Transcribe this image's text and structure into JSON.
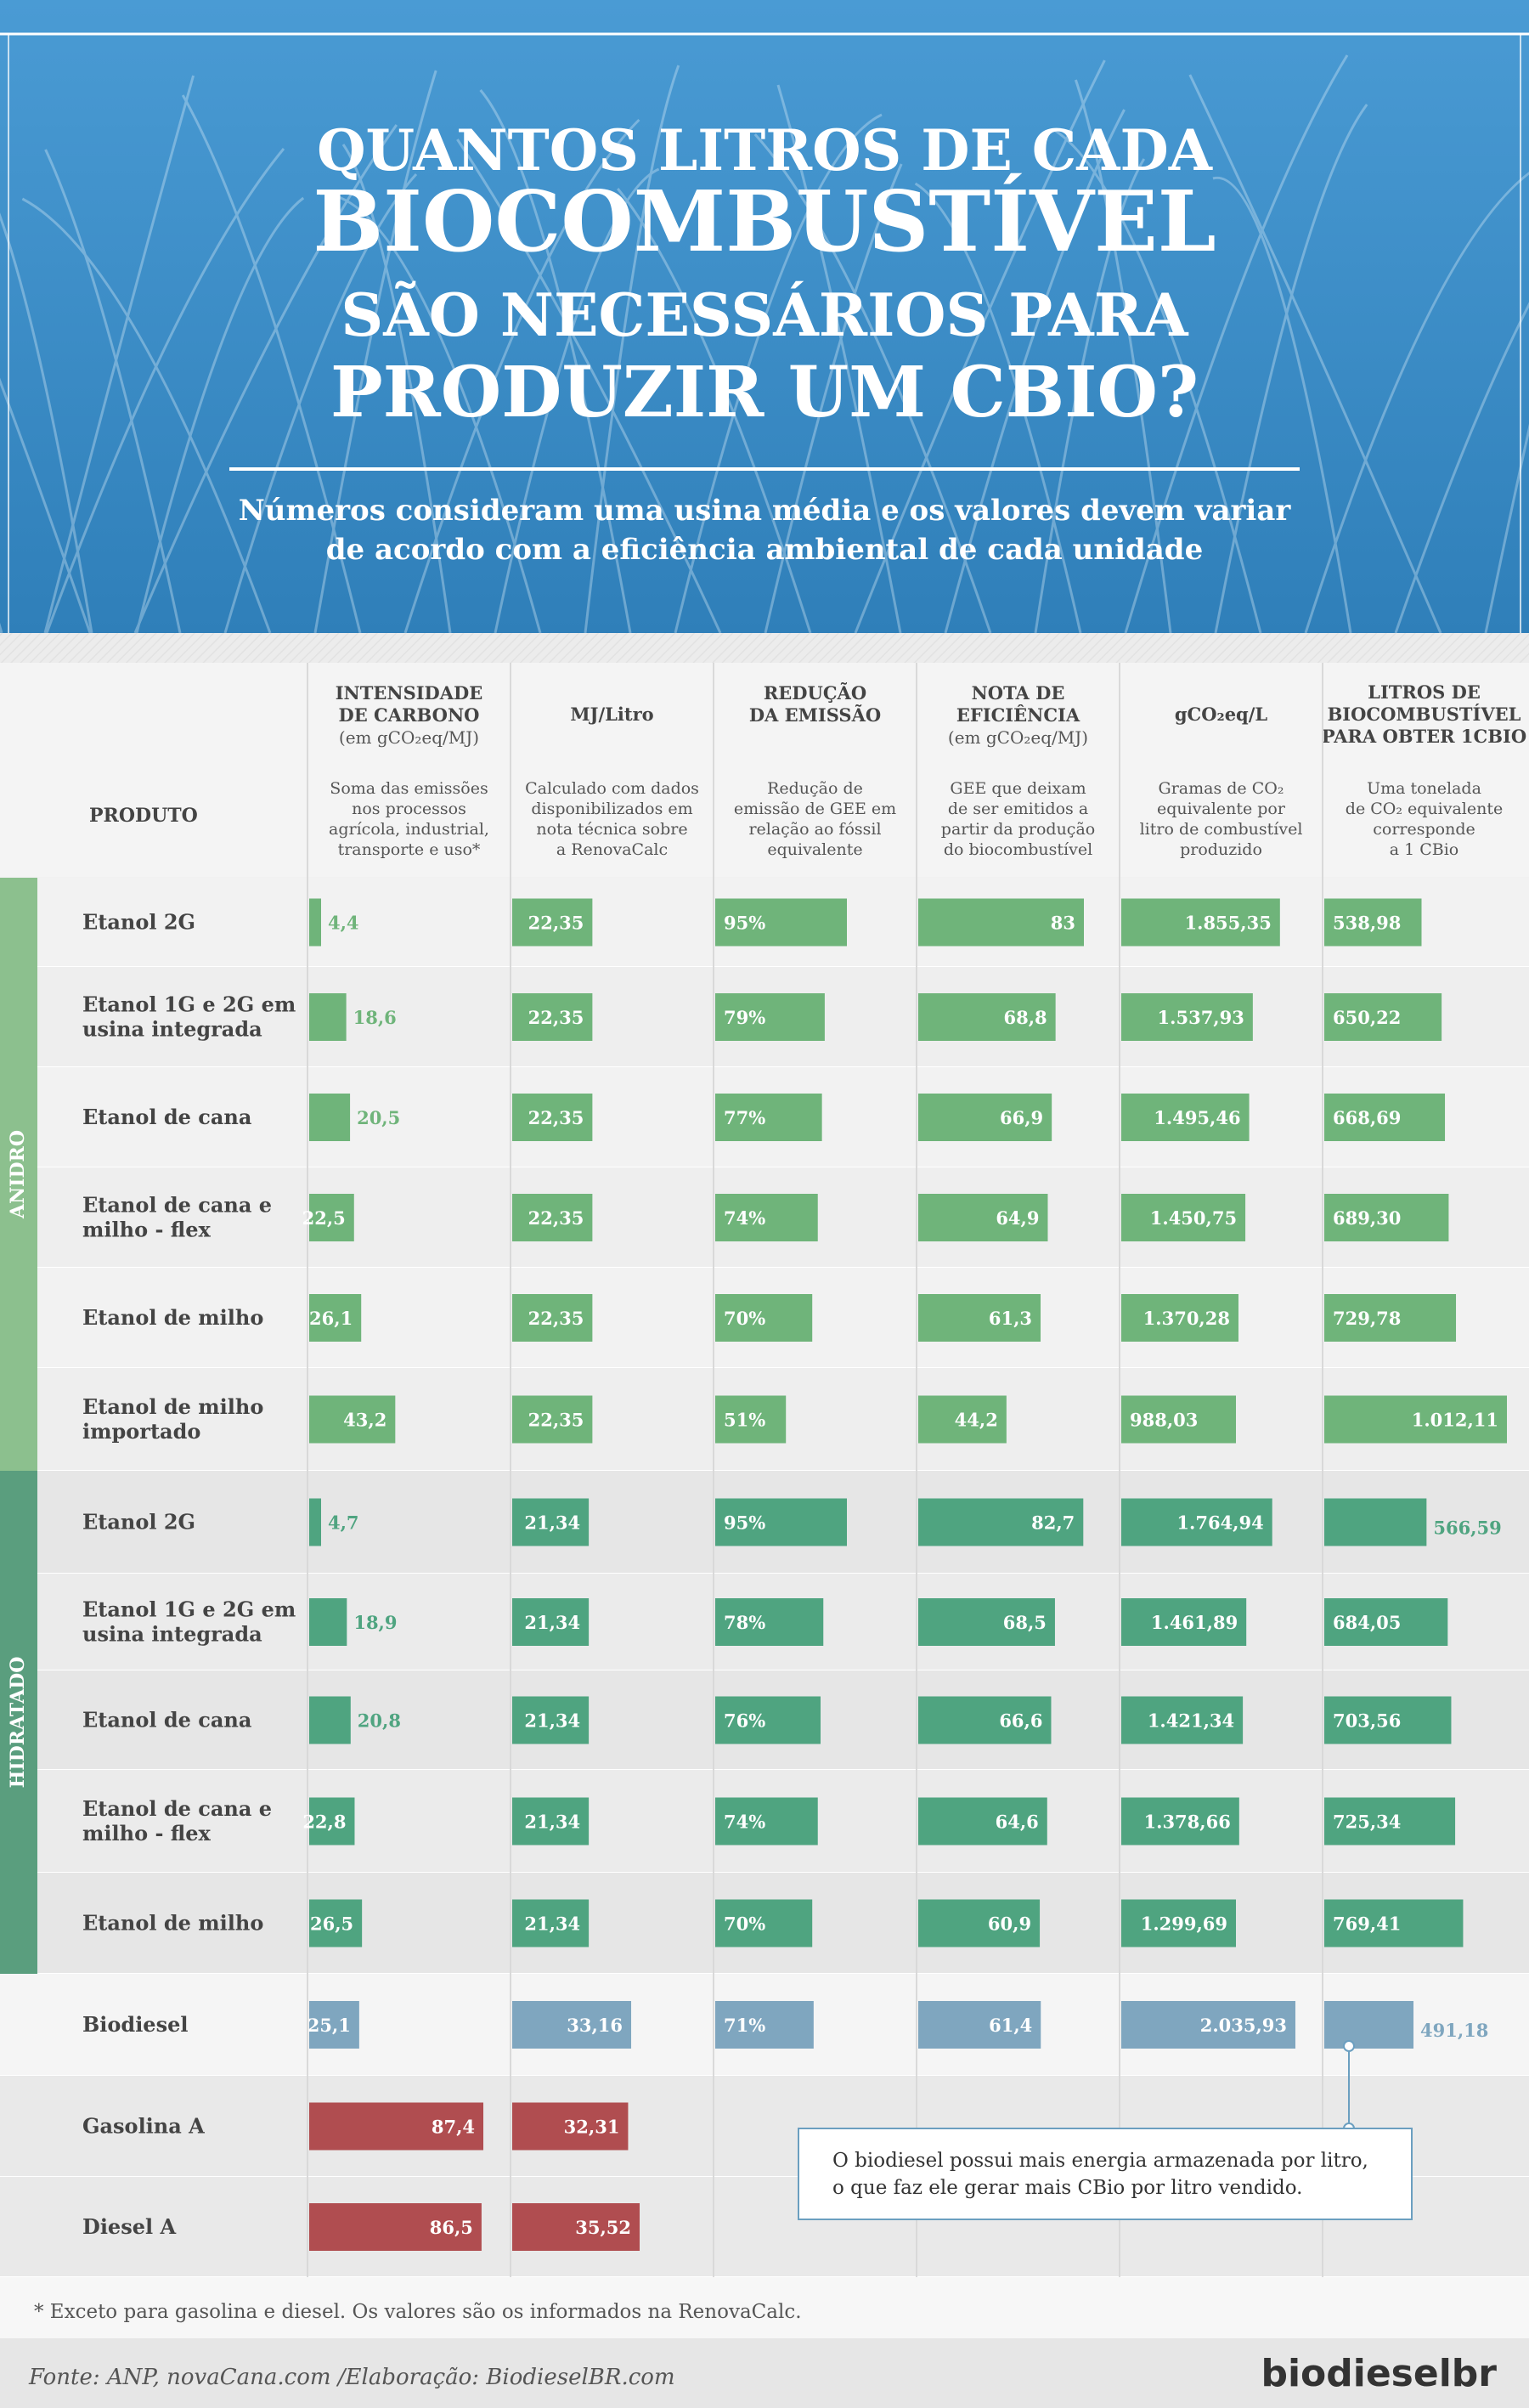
{
  "header": {
    "title_lines": [
      "QUANTOS LITROS DE CADA",
      "BIOCOMBUSTÍVEL",
      "SÃO NECESSÁRIOS PARA",
      "PRODUZIR UM CBIO?"
    ],
    "subtitle_lines": [
      "Números consideram uma usina média e os valores devem variar",
      "de acordo com a eficiência ambiental de cada unidade"
    ]
  },
  "table": {
    "product_header": "PRODUTO",
    "columns": [
      {
        "title": [
          "INTENSIDADE",
          "DE CARBONO"
        ],
        "unit": "(em gCO₂eq/MJ)",
        "desc": [
          "Soma das emissões",
          "nos processos",
          "agrícola, industrial,",
          "transporte e uso*"
        ]
      },
      {
        "title": [
          "MJ/Litro"
        ],
        "unit": "",
        "desc": [
          "Calculado com dados",
          "disponibilizados em",
          "nota técnica sobre",
          "a RenovaCalc"
        ]
      },
      {
        "title": [
          "REDUÇÃO",
          "DA EMISSÃO"
        ],
        "unit": "",
        "desc": [
          "Redução de",
          "emissão de GEE em",
          "relação ao fóssil",
          "equivalente"
        ]
      },
      {
        "title": [
          "NOTA DE",
          "EFICIÊNCIA"
        ],
        "unit": "(em gCO₂eq/MJ)",
        "desc": [
          "GEE que deixam",
          "de ser emitidos a",
          "partir da produção",
          "do biocombustível"
        ]
      },
      {
        "title": [
          "gCO₂eq/L"
        ],
        "unit": "",
        "desc": [
          "Gramas de CO₂",
          "equivalente por",
          "litro de combustível",
          "produzido"
        ]
      },
      {
        "title": [
          "LITROS DE",
          "BIOCOMBUSTÍVEL",
          "PARA OBTER 1CBIO"
        ],
        "unit": "",
        "desc": [
          "Uma tonelada",
          "de CO₂ equivalente",
          "corresponde",
          "a 1 CBio"
        ]
      }
    ],
    "groups": [
      {
        "label": "ANIDRO",
        "color": "#8cc08e"
      },
      {
        "label": "HIDRATADO",
        "color": "#5a9e7e"
      }
    ]
  },
  "annotation": [
    "O biodiesel possui mais energia armazenada por litro,",
    "o que faz ele gerar mais CBio por litro vendido."
  ],
  "footnote": "* Exceto para gasolina e diesel. Os valores são os informados na RenovaCalc.",
  "source": "Fonte: ANP, novaCana.com /Elaboração: BiodieselBR.com",
  "logo": "biodieselbr",
  "colors": {
    "anidro_bar": "#6fb47a",
    "hidratado_bar": "#4fa480",
    "biodiesel_bar": "#7fa6bf",
    "fossil_bar": "#b04d50",
    "header_blue": "#3d8fc8"
  },
  "chart_data": {
    "type": "bar",
    "title": "QUANTOS LITROS DE CADA BIOCOMBUSTÍVEL SÃO NECESSÁRIOS PARA PRODUZIR UM CBIO?",
    "categories": [
      "Etanol 2G",
      "Etanol 1G e 2G em usina integrada",
      "Etanol de cana",
      "Etanol de cana e milho - flex",
      "Etanol de milho",
      "Etanol de milho importado",
      "Etanol 2G",
      "Etanol 1G e 2G em usina integrada",
      "Etanol de cana",
      "Etanol de cana e milho - flex",
      "Etanol de milho",
      "Biodiesel",
      "Gasolina A",
      "Diesel A"
    ],
    "category_group": [
      "ANIDRO",
      "ANIDRO",
      "ANIDRO",
      "ANIDRO",
      "ANIDRO",
      "ANIDRO",
      "HIDRATADO",
      "HIDRATADO",
      "HIDRATADO",
      "HIDRATADO",
      "HIDRATADO",
      "",
      "",
      ""
    ],
    "series": [
      {
        "name": "INTENSIDADE DE CARBONO",
        "values": [
          4.4,
          18.6,
          20.5,
          22.5,
          26.1,
          43.2,
          4.7,
          18.9,
          20.8,
          22.8,
          26.5,
          25.1,
          87.4,
          86.5
        ],
        "labels": [
          "4,4",
          "18,6",
          "20,5",
          "22,5",
          "26,1",
          "43,2",
          "4,7",
          "18,9",
          "20,8",
          "22,8",
          "26,5",
          "25,1",
          "87,4",
          "86,5"
        ]
      },
      {
        "name": "MJ/Litro",
        "values": [
          22.35,
          22.35,
          22.35,
          22.35,
          22.35,
          22.35,
          21.34,
          21.34,
          21.34,
          21.34,
          21.34,
          33.16,
          32.31,
          35.52
        ],
        "labels": [
          "22,35",
          "22,35",
          "22,35",
          "22,35",
          "22,35",
          "22,35",
          "21,34",
          "21,34",
          "21,34",
          "21,34",
          "21,34",
          "33,16",
          "32,31",
          "35,52"
        ]
      },
      {
        "name": "REDUÇÃO DA EMISSÃO",
        "values": [
          95,
          79,
          77,
          74,
          70,
          51,
          95,
          78,
          76,
          74,
          70,
          71,
          null,
          null
        ],
        "labels": [
          "95%",
          "79%",
          "77%",
          "74%",
          "70%",
          "51%",
          "95%",
          "78%",
          "76%",
          "74%",
          "70%",
          "71%",
          null,
          null
        ]
      },
      {
        "name": "NOTA DE EFICIÊNCIA",
        "values": [
          83,
          68.8,
          66.9,
          64.9,
          61.3,
          44.2,
          82.7,
          68.5,
          66.6,
          64.6,
          60.9,
          61.4,
          null,
          null
        ],
        "labels": [
          "83",
          "68,8",
          "66,9",
          "64,9",
          "61,3",
          "44,2",
          "82,7",
          "68,5",
          "66,6",
          "64,6",
          "60,9",
          "61,4",
          null,
          null
        ]
      },
      {
        "name": "gCO₂eq/L",
        "values": [
          1855.35,
          1537.93,
          1495.46,
          1450.75,
          1370.28,
          988.03,
          1764.94,
          1461.89,
          1421.34,
          1378.66,
          1299.69,
          2035.93,
          null,
          null
        ],
        "labels": [
          "1.855,35",
          "1.537,93",
          "1.495,46",
          "1.450,75",
          "1.370,28",
          "988,03",
          "1.764,94",
          "1.461,89",
          "1.421,34",
          "1.378,66",
          "1.299,69",
          "2.035,93",
          null,
          null
        ]
      },
      {
        "name": "LITROS DE BIOCOMBUSTÍVEL PARA OBTER 1CBIO",
        "values": [
          538.98,
          650.22,
          668.69,
          689.3,
          729.78,
          1012.11,
          566.59,
          684.05,
          703.56,
          725.34,
          769.41,
          491.18,
          null,
          null
        ],
        "labels": [
          "538,98",
          "650,22",
          "668,69",
          "689,30",
          "729,78",
          "1.012,11",
          "566,59",
          "684,05",
          "703,56",
          "725,34",
          "769,41",
          "491,18",
          null,
          null
        ]
      }
    ]
  }
}
